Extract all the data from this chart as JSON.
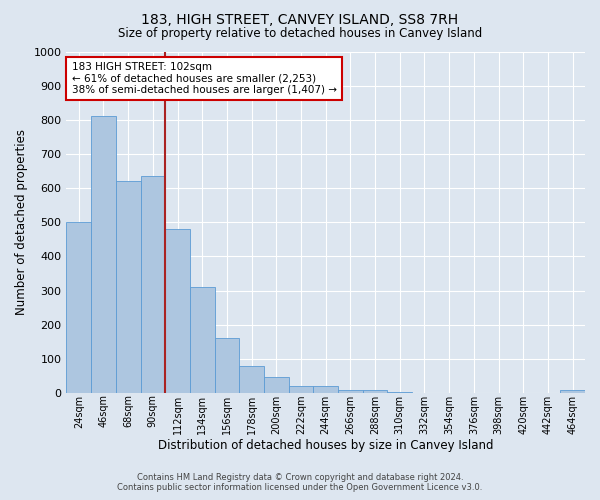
{
  "title": "183, HIGH STREET, CANVEY ISLAND, SS8 7RH",
  "subtitle": "Size of property relative to detached houses in Canvey Island",
  "xlabel": "Distribution of detached houses by size in Canvey Island",
  "ylabel": "Number of detached properties",
  "footer_line1": "Contains HM Land Registry data © Crown copyright and database right 2024.",
  "footer_line2": "Contains public sector information licensed under the Open Government Licence v3.0.",
  "bin_labels": [
    "24sqm",
    "46sqm",
    "68sqm",
    "90sqm",
    "112sqm",
    "134sqm",
    "156sqm",
    "178sqm",
    "200sqm",
    "222sqm",
    "244sqm",
    "266sqm",
    "288sqm",
    "310sqm",
    "332sqm",
    "354sqm",
    "376sqm",
    "398sqm",
    "420sqm",
    "442sqm",
    "464sqm"
  ],
  "bar_values": [
    500,
    810,
    620,
    635,
    480,
    310,
    160,
    80,
    46,
    22,
    21,
    10,
    8,
    3,
    1,
    1,
    0,
    1,
    0,
    0,
    8
  ],
  "bar_color": "#adc6e0",
  "bar_edge_color": "#5b9bd5",
  "background_color": "#dde6f0",
  "grid_color": "#ffffff",
  "property_label": "183 HIGH STREET: 102sqm",
  "annotation_line1": "← 61% of detached houses are smaller (2,253)",
  "annotation_line2": "38% of semi-detached houses are larger (1,407) →",
  "vline_color": "#aa2222",
  "annotation_box_color": "#ffffff",
  "annotation_box_edge": "#cc0000",
  "ylim": [
    0,
    1000
  ],
  "yticks": [
    0,
    100,
    200,
    300,
    400,
    500,
    600,
    700,
    800,
    900,
    1000
  ]
}
